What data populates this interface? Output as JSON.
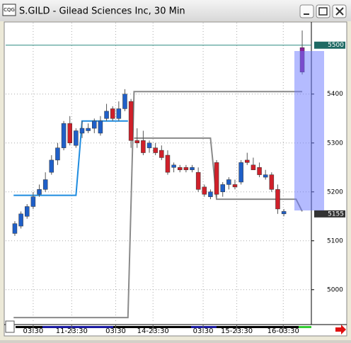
{
  "window": {
    "title": "S.GILD - Gilead Sciences Inc, 30 Min",
    "icon": "CQG"
  },
  "chart_data": {
    "type": "candlestick",
    "x": [
      0,
      1,
      2,
      3,
      4,
      5,
      6,
      7,
      8,
      9,
      10,
      11,
      12,
      13,
      14,
      15,
      16,
      17,
      18,
      19,
      20,
      21,
      22,
      23,
      24,
      25,
      26,
      27,
      28,
      29,
      30,
      31,
      32,
      33,
      34,
      35,
      36,
      37,
      38,
      39,
      40,
      41,
      42,
      43,
      44,
      47
    ],
    "open": [
      5115,
      5130,
      5150,
      5170,
      5195,
      5205,
      5240,
      5265,
      5290,
      5340,
      5295,
      5320,
      5325,
      5330,
      5320,
      5350,
      5370,
      5350,
      5370,
      5385,
      5305,
      5305,
      5290,
      5290,
      5285,
      5275,
      5250,
      5250,
      5250,
      5245,
      5240,
      5210,
      5190,
      5260,
      5200,
      5215,
      5215,
      5220,
      5265,
      5255,
      5250,
      5230,
      5235,
      5205,
      5155,
      5495
    ],
    "high": [
      5140,
      5160,
      5175,
      5200,
      5215,
      5240,
      5275,
      5300,
      5345,
      5355,
      5330,
      5345,
      5340,
      5350,
      5355,
      5380,
      5375,
      5385,
      5410,
      5390,
      5330,
      5325,
      5305,
      5300,
      5295,
      5285,
      5260,
      5255,
      5255,
      5255,
      5250,
      5215,
      5205,
      5265,
      5220,
      5230,
      5225,
      5265,
      5280,
      5270,
      5260,
      5245,
      5240,
      5215,
      5165,
      5530
    ],
    "low": [
      5110,
      5125,
      5145,
      5165,
      5190,
      5200,
      5235,
      5255,
      5285,
      5295,
      5290,
      5310,
      5320,
      5320,
      5315,
      5345,
      5345,
      5345,
      5365,
      5290,
      5290,
      5275,
      5280,
      5275,
      5265,
      5235,
      5240,
      5240,
      5240,
      5240,
      5200,
      5190,
      5185,
      5190,
      5190,
      5205,
      5205,
      5215,
      5255,
      5245,
      5230,
      5225,
      5200,
      5155,
      5150,
      5440
    ],
    "close": [
      5135,
      5155,
      5170,
      5190,
      5205,
      5225,
      5265,
      5290,
      5340,
      5300,
      5325,
      5330,
      5330,
      5345,
      5345,
      5365,
      5350,
      5370,
      5400,
      5305,
      5300,
      5280,
      5300,
      5280,
      5270,
      5240,
      5255,
      5245,
      5245,
      5250,
      5205,
      5195,
      5200,
      5195,
      5215,
      5225,
      5210,
      5260,
      5260,
      5245,
      5235,
      5235,
      5205,
      5165,
      5160,
      5445
    ],
    "up_color": "#1f5fc8",
    "down_color": "#d0202a",
    "current_bar_color": "#8a1f9a",
    "lines": [
      {
        "color": "#1e8ce0",
        "x": [
          -0.2,
          10,
          11,
          18.5
        ],
        "values": [
          5193,
          5193,
          5345,
          5345
        ]
      },
      {
        "color": "#8a8a8a",
        "x": [
          -0.2,
          18.5,
          19.5,
          47
        ],
        "values": [
          4943,
          4943,
          5405,
          5405
        ]
      },
      {
        "color": "#8a8a8a",
        "x": [
          19.5,
          32,
          33,
          46,
          47
        ],
        "values": [
          5310,
          5310,
          5185,
          5185,
          5160
        ]
      }
    ],
    "hlines": [
      {
        "value": 5500,
        "label": "5500",
        "color": "#2a8a80"
      }
    ],
    "price_tags": [
      {
        "value": 5155,
        "label": "5155"
      }
    ],
    "xlim": [
      -1.5,
      48.5
    ],
    "ylim": [
      4933,
      5546
    ],
    "yticks": [
      5000,
      5100,
      5200,
      5300,
      5400
    ],
    "xticks": [
      {
        "value": 3,
        "label": "03:30"
      },
      {
        "value": 9.3,
        "label": "11-23:30"
      },
      {
        "value": 16.5,
        "label": "03:30"
      },
      {
        "value": 22.6,
        "label": "14-23:30"
      },
      {
        "value": 30.8,
        "label": "03:30"
      },
      {
        "value": 36.3,
        "label": "15-23:30"
      },
      {
        "value": 43.9,
        "label": "16-03:30"
      }
    ],
    "grid": true
  }
}
